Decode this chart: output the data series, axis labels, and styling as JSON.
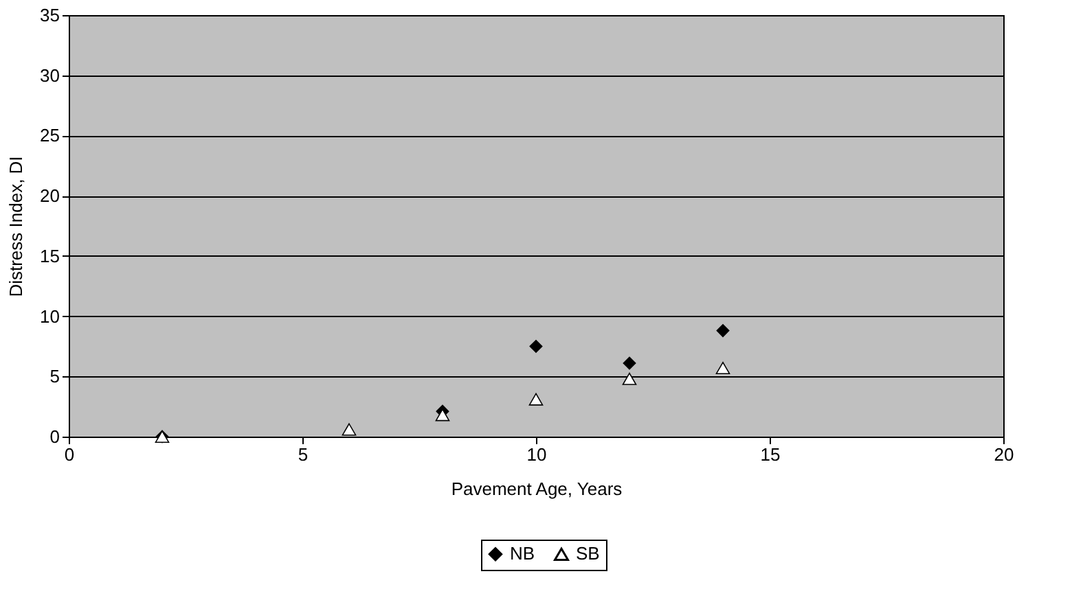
{
  "chart_data": {
    "type": "scatter",
    "xlabel": "Pavement Age, Years",
    "ylabel": "Distress Index, DI",
    "x": [
      2,
      6,
      8,
      10,
      12,
      14
    ],
    "series": [
      {
        "name": "NB",
        "color": "#000000",
        "marker": "diamond",
        "values": [
          0,
          null,
          2.1,
          7.5,
          6.1,
          8.8
        ]
      },
      {
        "name": "SB",
        "color": "#ffffff",
        "marker": "triangle",
        "values": [
          0,
          0.6,
          1.8,
          3.1,
          4.8,
          5.7
        ]
      }
    ],
    "xlim": [
      0,
      20
    ],
    "xticks": [
      0,
      5,
      10,
      15,
      20
    ],
    "ylim": [
      0,
      35
    ],
    "yticks": [
      0,
      5,
      10,
      15,
      20,
      25,
      30,
      35
    ],
    "grid": "y",
    "legend": "bottom"
  }
}
